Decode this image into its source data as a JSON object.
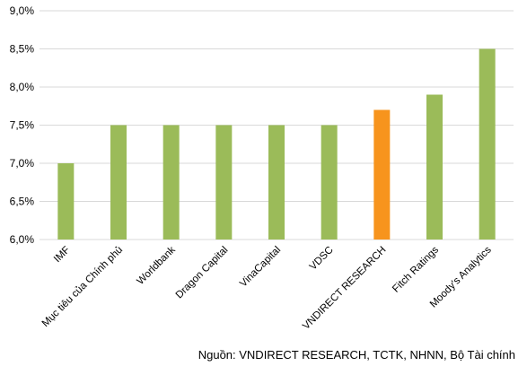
{
  "chart_data": {
    "type": "bar",
    "categories": [
      "IMF",
      "Mục tiêu của Chính phủ",
      "Worldbank",
      "Dragon Capital",
      "VinaCapital",
      "VDSC",
      "VNDIRECT RESEARCH",
      "Fitch Ratings",
      "Moody's Analytics"
    ],
    "values": [
      7.0,
      7.5,
      7.5,
      7.5,
      7.5,
      7.5,
      7.7,
      7.9,
      8.5
    ],
    "colors": [
      "#9bbb59",
      "#9bbb59",
      "#9bbb59",
      "#9bbb59",
      "#9bbb59",
      "#9bbb59",
      "#f7941d",
      "#9bbb59",
      "#9bbb59"
    ],
    "ylim": [
      6.0,
      9.0
    ],
    "yticks": [
      "6,0%",
      "6,5%",
      "7,0%",
      "7,5%",
      "8,0%",
      "8,5%",
      "9,0%"
    ],
    "grid": true,
    "title": "",
    "xlabel": "",
    "ylabel": ""
  },
  "source_note": "Nguồn: VNDIRECT RESEARCH, TCTK, NHNN, Bộ Tài chính"
}
